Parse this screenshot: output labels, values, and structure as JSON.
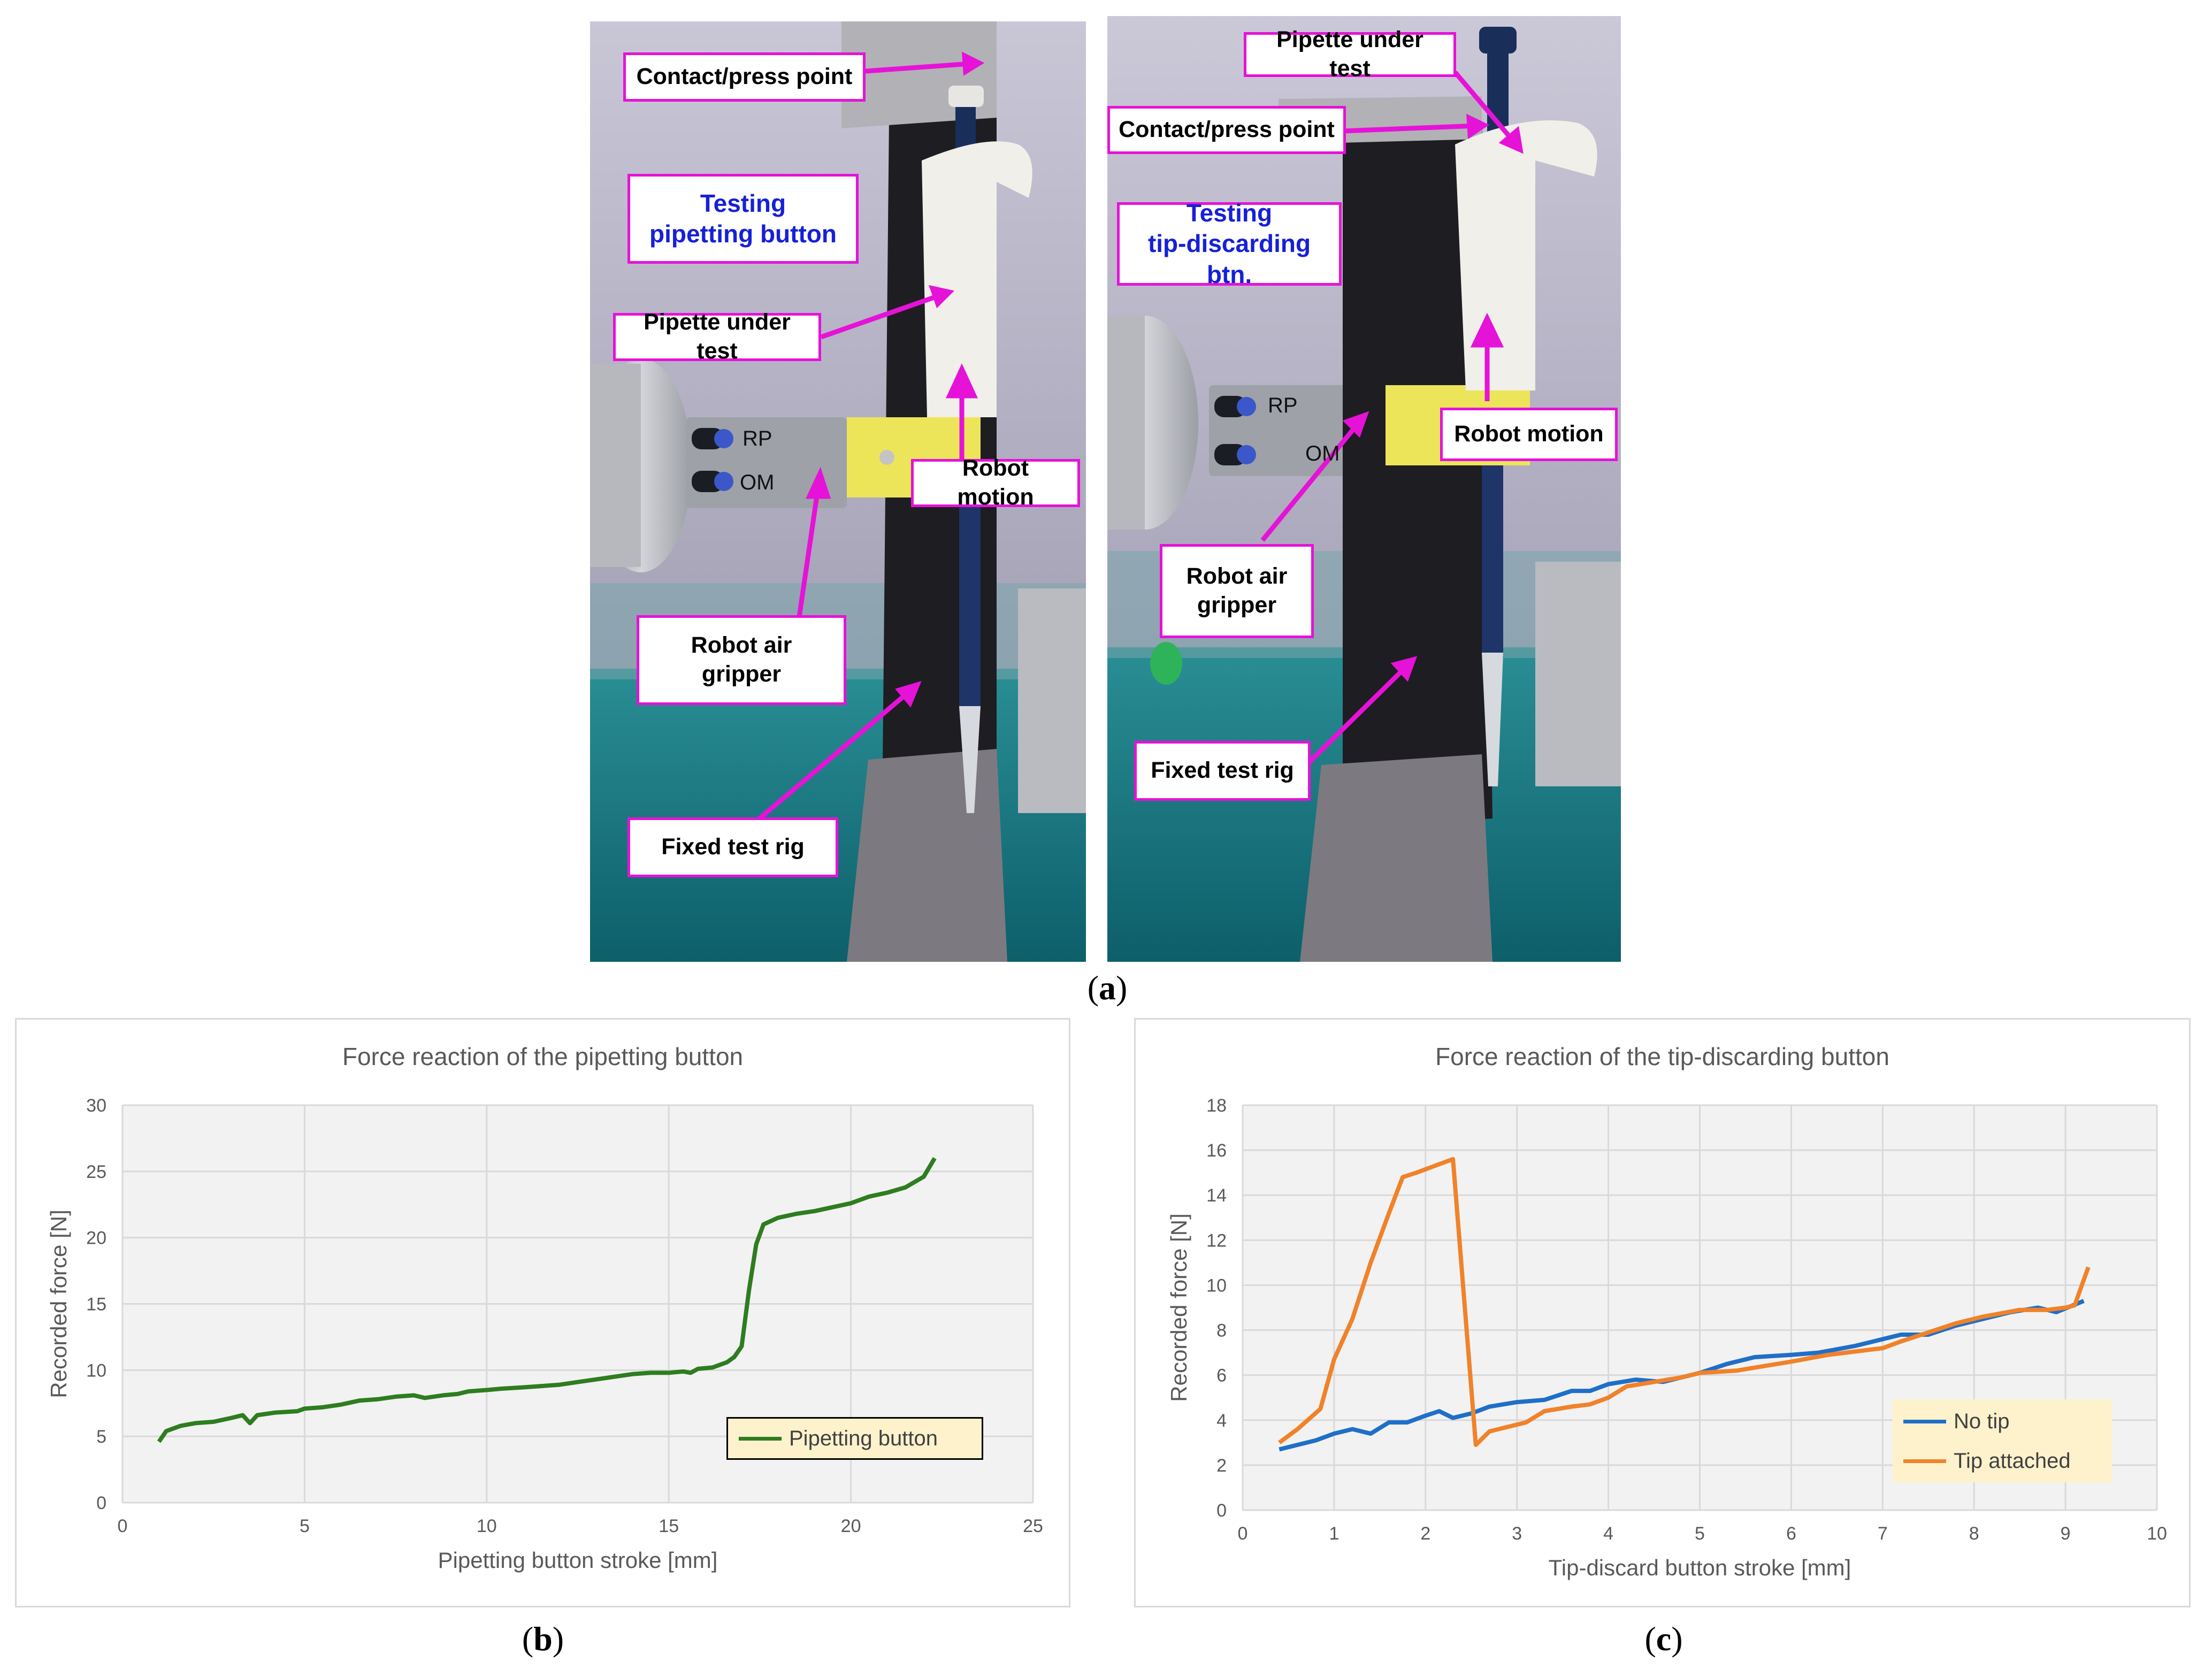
{
  "figure": {
    "panel_a_label": "a",
    "panel_b_label": "b",
    "panel_c_label": "c"
  },
  "photo_left": {
    "callouts": {
      "contact": "Contact/press point",
      "testing": "Testing\npipetting button",
      "pipette": "Pipette under test",
      "motion": "Robot motion",
      "gripper": "Robot air\ngripper",
      "rig": "Fixed test rig"
    },
    "gripper_marks": [
      "RP",
      "OM"
    ]
  },
  "photo_right": {
    "callouts": {
      "pipette": "Pipette under test",
      "contact": "Contact/press point",
      "testing": "Testing\ntip-discarding btn.",
      "motion": "Robot motion",
      "gripper": "Robot air\ngripper",
      "rig": "Fixed test rig"
    },
    "gripper_marks": [
      "RP",
      "OM"
    ]
  },
  "colors": {
    "callout_border": "#e612d8",
    "callout_blue_text": "#1620d8",
    "pipetting_series": "#2e7d1f",
    "no_tip_series": "#1f6fc8",
    "tip_series": "#f0822a"
  },
  "chart_data": [
    {
      "type": "line",
      "title": "Force reaction of the pipetting button",
      "xlabel": "Pipetting button stroke [mm]",
      "ylabel": "Recorded force [N]",
      "xlim": [
        0,
        25
      ],
      "ylim": [
        0,
        30
      ],
      "xticks": [
        "0",
        "5",
        "10",
        "15",
        "20",
        "25"
      ],
      "yticks": [
        "0",
        "5",
        "10",
        "15",
        "20",
        "25",
        "30"
      ],
      "grid": true,
      "legend_position": "bottom-right",
      "series": [
        {
          "name": "Pipetting button",
          "color": "#2e7d1f",
          "points": [
            [
              1.0,
              4.6
            ],
            [
              1.2,
              5.4
            ],
            [
              1.6,
              5.8
            ],
            [
              2.0,
              6.0
            ],
            [
              2.5,
              6.1
            ],
            [
              3.0,
              6.4
            ],
            [
              3.3,
              6.6
            ],
            [
              3.5,
              6.0
            ],
            [
              3.7,
              6.6
            ],
            [
              4.2,
              6.8
            ],
            [
              4.8,
              6.9
            ],
            [
              5.0,
              7.1
            ],
            [
              5.5,
              7.2
            ],
            [
              6.0,
              7.4
            ],
            [
              6.5,
              7.7
            ],
            [
              7.0,
              7.8
            ],
            [
              7.5,
              8.0
            ],
            [
              8.0,
              8.1
            ],
            [
              8.3,
              7.9
            ],
            [
              8.8,
              8.1
            ],
            [
              9.2,
              8.2
            ],
            [
              9.5,
              8.4
            ],
            [
              10.0,
              8.5
            ],
            [
              10.4,
              8.6
            ],
            [
              11.0,
              8.7
            ],
            [
              11.5,
              8.8
            ],
            [
              12.0,
              8.9
            ],
            [
              12.5,
              9.1
            ],
            [
              13.0,
              9.3
            ],
            [
              13.5,
              9.5
            ],
            [
              14.0,
              9.7
            ],
            [
              14.5,
              9.8
            ],
            [
              15.0,
              9.8
            ],
            [
              15.4,
              9.9
            ],
            [
              15.6,
              9.8
            ],
            [
              15.8,
              10.1
            ],
            [
              16.2,
              10.2
            ],
            [
              16.6,
              10.6
            ],
            [
              16.8,
              11.0
            ],
            [
              17.0,
              11.8
            ],
            [
              17.2,
              16.0
            ],
            [
              17.4,
              19.5
            ],
            [
              17.6,
              21.0
            ],
            [
              18.0,
              21.5
            ],
            [
              18.5,
              21.8
            ],
            [
              19.0,
              22.0
            ],
            [
              19.5,
              22.3
            ],
            [
              20.0,
              22.6
            ],
            [
              20.5,
              23.1
            ],
            [
              21.0,
              23.4
            ],
            [
              21.5,
              23.8
            ],
            [
              22.0,
              24.6
            ],
            [
              22.3,
              26.0
            ]
          ]
        }
      ]
    },
    {
      "type": "line",
      "title": "Force reaction of the tip-discarding button",
      "xlabel": "Tip-discard button stroke [mm]",
      "ylabel": "Recorded force [N]",
      "xlim": [
        0,
        10
      ],
      "ylim": [
        0,
        18
      ],
      "xticks": [
        "0",
        "1",
        "2",
        "3",
        "4",
        "5",
        "6",
        "7",
        "8",
        "9",
        "10"
      ],
      "yticks": [
        "0",
        "2",
        "4",
        "6",
        "8",
        "10",
        "12",
        "14",
        "16",
        "18"
      ],
      "grid": true,
      "legend_position": "bottom-right",
      "series": [
        {
          "name": "No tip",
          "color": "#1f6fc8",
          "points": [
            [
              0.4,
              2.7
            ],
            [
              0.6,
              2.9
            ],
            [
              0.8,
              3.1
            ],
            [
              1.0,
              3.4
            ],
            [
              1.2,
              3.6
            ],
            [
              1.4,
              3.4
            ],
            [
              1.6,
              3.9
            ],
            [
              1.8,
              3.9
            ],
            [
              2.0,
              4.2
            ],
            [
              2.15,
              4.4
            ],
            [
              2.3,
              4.1
            ],
            [
              2.5,
              4.3
            ],
            [
              2.7,
              4.6
            ],
            [
              3.0,
              4.8
            ],
            [
              3.3,
              4.9
            ],
            [
              3.6,
              5.3
            ],
            [
              3.8,
              5.3
            ],
            [
              4.0,
              5.6
            ],
            [
              4.3,
              5.8
            ],
            [
              4.6,
              5.7
            ],
            [
              5.0,
              6.1
            ],
            [
              5.3,
              6.5
            ],
            [
              5.6,
              6.8
            ],
            [
              6.0,
              6.9
            ],
            [
              6.3,
              7.0
            ],
            [
              6.7,
              7.3
            ],
            [
              6.9,
              7.5
            ],
            [
              7.2,
              7.8
            ],
            [
              7.5,
              7.8
            ],
            [
              7.8,
              8.2
            ],
            [
              8.1,
              8.5
            ],
            [
              8.4,
              8.8
            ],
            [
              8.7,
              9.0
            ],
            [
              8.9,
              8.8
            ],
            [
              9.2,
              9.3
            ]
          ]
        },
        {
          "name": "Tip attached",
          "color": "#f0822a",
          "points": [
            [
              0.4,
              3.0
            ],
            [
              0.6,
              3.6
            ],
            [
              0.85,
              4.5
            ],
            [
              1.0,
              6.7
            ],
            [
              1.2,
              8.5
            ],
            [
              1.4,
              11.0
            ],
            [
              1.6,
              13.2
            ],
            [
              1.75,
              14.8
            ],
            [
              1.9,
              15.0
            ],
            [
              2.1,
              15.3
            ],
            [
              2.3,
              15.6
            ],
            [
              2.55,
              2.9
            ],
            [
              2.7,
              3.5
            ],
            [
              2.9,
              3.7
            ],
            [
              3.1,
              3.9
            ],
            [
              3.3,
              4.4
            ],
            [
              3.6,
              4.6
            ],
            [
              3.8,
              4.7
            ],
            [
              4.0,
              5.0
            ],
            [
              4.2,
              5.5
            ],
            [
              4.5,
              5.7
            ],
            [
              4.8,
              5.9
            ],
            [
              5.0,
              6.1
            ],
            [
              5.4,
              6.2
            ],
            [
              5.7,
              6.4
            ],
            [
              6.0,
              6.6
            ],
            [
              6.4,
              6.9
            ],
            [
              6.8,
              7.1
            ],
            [
              7.0,
              7.2
            ],
            [
              7.2,
              7.5
            ],
            [
              7.5,
              7.9
            ],
            [
              7.8,
              8.3
            ],
            [
              8.1,
              8.6
            ],
            [
              8.5,
              8.9
            ],
            [
              8.8,
              8.9
            ],
            [
              9.0,
              9.0
            ],
            [
              9.1,
              9.1
            ],
            [
              9.25,
              10.8
            ]
          ]
        }
      ]
    }
  ]
}
